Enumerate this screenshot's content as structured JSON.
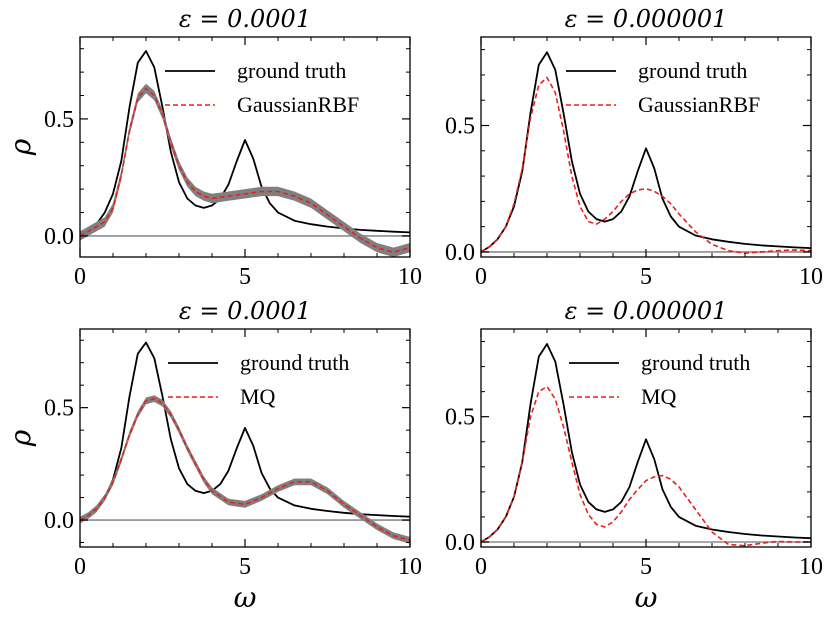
{
  "chart_data": [
    {
      "type": "line",
      "title": "ε = 0.0001",
      "xlabel": "",
      "ylabel": "ρ",
      "xlim": [
        0,
        10
      ],
      "ylim": [
        -0.09,
        0.85
      ],
      "xticks": [
        0,
        5,
        10
      ],
      "xtick_labels": [
        "0",
        "5",
        "10"
      ],
      "yticks": [
        0.0,
        0.5
      ],
      "ytick_labels": [
        "0.0",
        "0.5"
      ],
      "legend_position": "top-right",
      "series": [
        {
          "name": "ground truth",
          "style": "solid",
          "color": "#000000",
          "x": [
            0,
            0.25,
            0.5,
            0.75,
            1,
            1.25,
            1.5,
            1.75,
            2,
            2.25,
            2.5,
            2.75,
            3,
            3.25,
            3.5,
            3.75,
            4,
            4.25,
            4.5,
            4.75,
            5,
            5.25,
            5.5,
            5.75,
            6,
            6.5,
            7,
            7.5,
            8,
            8.5,
            9,
            9.5,
            10
          ],
          "y": [
            0,
            0.02,
            0.05,
            0.1,
            0.18,
            0.32,
            0.55,
            0.74,
            0.79,
            0.72,
            0.55,
            0.36,
            0.23,
            0.16,
            0.13,
            0.12,
            0.13,
            0.16,
            0.22,
            0.32,
            0.41,
            0.33,
            0.21,
            0.14,
            0.1,
            0.065,
            0.05,
            0.04,
            0.032,
            0.026,
            0.022,
            0.018,
            0.015
          ]
        },
        {
          "name": "GaussianRBF",
          "style": "dashed",
          "color": "#e8201c",
          "band": 0.02,
          "x": [
            0,
            0.25,
            0.5,
            0.75,
            1,
            1.25,
            1.5,
            1.75,
            2,
            2.25,
            2.5,
            2.75,
            3,
            3.25,
            3.5,
            3.75,
            4,
            4.5,
            5,
            5.5,
            6,
            6.5,
            7,
            7.5,
            8,
            8.5,
            9,
            9.5,
            10
          ],
          "y": [
            0,
            0.02,
            0.04,
            0.06,
            0.12,
            0.26,
            0.45,
            0.59,
            0.63,
            0.6,
            0.52,
            0.4,
            0.3,
            0.23,
            0.19,
            0.17,
            0.16,
            0.17,
            0.18,
            0.19,
            0.19,
            0.17,
            0.14,
            0.09,
            0.04,
            -0.01,
            -0.05,
            -0.07,
            -0.05
          ]
        }
      ]
    },
    {
      "type": "line",
      "title": "ε = 0.000001",
      "xlabel": "",
      "ylabel": "",
      "xlim": [
        0,
        10
      ],
      "ylim": [
        -0.02,
        0.85
      ],
      "xticks": [
        0,
        5,
        10
      ],
      "xtick_labels": [
        "0",
        "5",
        "10"
      ],
      "yticks": [
        0.0,
        0.5
      ],
      "ytick_labels": [
        "0.0",
        "0.5"
      ],
      "legend_position": "top-right",
      "series": [
        {
          "name": "ground truth",
          "style": "solid",
          "color": "#000000",
          "x": [
            0,
            0.25,
            0.5,
            0.75,
            1,
            1.25,
            1.5,
            1.75,
            2,
            2.25,
            2.5,
            2.75,
            3,
            3.25,
            3.5,
            3.75,
            4,
            4.25,
            4.5,
            4.75,
            5,
            5.25,
            5.5,
            5.75,
            6,
            6.5,
            7,
            7.5,
            8,
            8.5,
            9,
            9.5,
            10
          ],
          "y": [
            0,
            0.02,
            0.05,
            0.1,
            0.18,
            0.32,
            0.55,
            0.74,
            0.79,
            0.72,
            0.55,
            0.36,
            0.23,
            0.16,
            0.13,
            0.12,
            0.13,
            0.16,
            0.22,
            0.32,
            0.41,
            0.33,
            0.21,
            0.14,
            0.1,
            0.065,
            0.05,
            0.04,
            0.032,
            0.026,
            0.022,
            0.018,
            0.015
          ]
        },
        {
          "name": "GaussianRBF",
          "style": "dashed",
          "color": "#e8201c",
          "x": [
            0,
            0.25,
            0.5,
            0.75,
            1,
            1.25,
            1.5,
            1.75,
            2,
            2.25,
            2.5,
            2.75,
            3,
            3.25,
            3.5,
            3.75,
            4,
            4.25,
            4.5,
            4.75,
            5,
            5.25,
            5.5,
            5.75,
            6,
            6.5,
            7,
            7.5,
            8,
            8.5,
            9,
            9.5,
            10
          ],
          "y": [
            0,
            0.02,
            0.05,
            0.1,
            0.19,
            0.33,
            0.53,
            0.66,
            0.69,
            0.63,
            0.48,
            0.3,
            0.18,
            0.12,
            0.11,
            0.13,
            0.16,
            0.2,
            0.23,
            0.245,
            0.25,
            0.24,
            0.22,
            0.19,
            0.15,
            0.08,
            0.03,
            0.005,
            -0.005,
            0.0,
            0.005,
            0.008,
            0.005
          ]
        }
      ]
    },
    {
      "type": "line",
      "title": "ε = 0.0001",
      "xlabel": "ω",
      "ylabel": "ρ",
      "xlim": [
        0,
        10
      ],
      "ylim": [
        -0.12,
        0.85
      ],
      "xticks": [
        0,
        5,
        10
      ],
      "xtick_labels": [
        "0",
        "5",
        "10"
      ],
      "yticks": [
        0.0,
        0.5
      ],
      "ytick_labels": [
        "0.0",
        "0.5"
      ],
      "legend_position": "top-right",
      "series": [
        {
          "name": "ground truth",
          "style": "solid",
          "color": "#000000",
          "x": [
            0,
            0.25,
            0.5,
            0.75,
            1,
            1.25,
            1.5,
            1.75,
            2,
            2.25,
            2.5,
            2.75,
            3,
            3.25,
            3.5,
            3.75,
            4,
            4.25,
            4.5,
            4.75,
            5,
            5.25,
            5.5,
            5.75,
            6,
            6.5,
            7,
            7.5,
            8,
            8.5,
            9,
            9.5,
            10
          ],
          "y": [
            0,
            0.02,
            0.05,
            0.1,
            0.18,
            0.32,
            0.55,
            0.74,
            0.79,
            0.72,
            0.55,
            0.36,
            0.23,
            0.16,
            0.13,
            0.12,
            0.13,
            0.16,
            0.22,
            0.32,
            0.41,
            0.33,
            0.21,
            0.14,
            0.1,
            0.065,
            0.05,
            0.04,
            0.032,
            0.026,
            0.022,
            0.018,
            0.015
          ]
        },
        {
          "name": "MQ",
          "style": "dashed",
          "color": "#e8201c",
          "band": 0.015,
          "x": [
            0,
            0.25,
            0.5,
            0.75,
            1,
            1.25,
            1.5,
            1.75,
            2,
            2.25,
            2.5,
            2.75,
            3,
            3.25,
            3.5,
            3.75,
            4,
            4.5,
            5,
            5.5,
            6,
            6.5,
            7,
            7.5,
            8,
            8.5,
            9,
            9.5,
            10
          ],
          "y": [
            0,
            0.02,
            0.05,
            0.1,
            0.17,
            0.27,
            0.38,
            0.47,
            0.53,
            0.54,
            0.52,
            0.47,
            0.4,
            0.32,
            0.25,
            0.18,
            0.13,
            0.08,
            0.07,
            0.1,
            0.14,
            0.17,
            0.17,
            0.13,
            0.07,
            0.02,
            -0.03,
            -0.07,
            -0.09
          ]
        }
      ]
    },
    {
      "type": "line",
      "title": "ε = 0.000001",
      "xlabel": "ω",
      "ylabel": "",
      "xlim": [
        0,
        10
      ],
      "ylim": [
        -0.02,
        0.85
      ],
      "xticks": [
        0,
        5,
        10
      ],
      "xtick_labels": [
        "0",
        "5",
        "10"
      ],
      "yticks": [
        0.0,
        0.5
      ],
      "ytick_labels": [
        "0.0",
        "0.5"
      ],
      "legend_position": "top-right",
      "series": [
        {
          "name": "ground truth",
          "style": "solid",
          "color": "#000000",
          "x": [
            0,
            0.25,
            0.5,
            0.75,
            1,
            1.25,
            1.5,
            1.75,
            2,
            2.25,
            2.5,
            2.75,
            3,
            3.25,
            3.5,
            3.75,
            4,
            4.25,
            4.5,
            4.75,
            5,
            5.25,
            5.5,
            5.75,
            6,
            6.5,
            7,
            7.5,
            8,
            8.5,
            9,
            9.5,
            10
          ],
          "y": [
            0,
            0.02,
            0.05,
            0.1,
            0.18,
            0.32,
            0.55,
            0.74,
            0.79,
            0.72,
            0.55,
            0.36,
            0.23,
            0.16,
            0.13,
            0.12,
            0.13,
            0.16,
            0.22,
            0.32,
            0.41,
            0.33,
            0.21,
            0.14,
            0.1,
            0.065,
            0.05,
            0.04,
            0.032,
            0.026,
            0.022,
            0.018,
            0.015
          ]
        },
        {
          "name": "MQ",
          "style": "dashed",
          "color": "#e8201c",
          "x": [
            0,
            0.25,
            0.5,
            0.75,
            1,
            1.25,
            1.5,
            1.75,
            2,
            2.25,
            2.5,
            2.75,
            3,
            3.25,
            3.5,
            3.75,
            4,
            4.25,
            4.5,
            4.75,
            5,
            5.25,
            5.5,
            5.75,
            6,
            6.5,
            7,
            7.5,
            8,
            8.5,
            9,
            9.5,
            10
          ],
          "y": [
            0,
            0.02,
            0.05,
            0.1,
            0.18,
            0.32,
            0.5,
            0.6,
            0.62,
            0.57,
            0.46,
            0.32,
            0.19,
            0.11,
            0.07,
            0.06,
            0.08,
            0.12,
            0.17,
            0.21,
            0.245,
            0.26,
            0.265,
            0.25,
            0.22,
            0.13,
            0.04,
            -0.01,
            -0.015,
            -0.005,
            0.002,
            0.0,
            0.0
          ]
        }
      ]
    }
  ]
}
